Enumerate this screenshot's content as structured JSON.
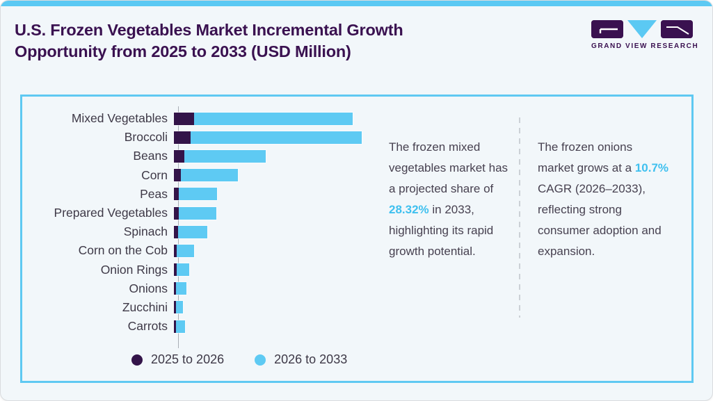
{
  "header": {
    "title_lines": [
      "U.S. Frozen Vegetables Market Incremental Growth",
      "Opportunity from 2025 to 2033 (USD Million)"
    ],
    "brand": "GRAND VIEW RESEARCH"
  },
  "chart_data": {
    "type": "bar",
    "orientation": "horizontal",
    "stacked": true,
    "title": "U.S. Frozen Vegetables Market Incremental Growth Opportunity from 2025 to 2033 (USD Million)",
    "units": "USD Million",
    "value_note": "no numeric axis or data labels shown; values are relative bar lengths measured in screen pixels",
    "grid": false,
    "legend_position": "bottom",
    "categories": [
      "Mixed Vegetables",
      "Broccoli",
      "Beans",
      "Corn",
      "Peas",
      "Prepared Vegetables",
      "Spinach",
      "Corn on the Cob",
      "Onion Rings",
      "Onions",
      "Zucchini",
      "Carrots"
    ],
    "series": [
      {
        "name": "2025 to 2026",
        "color": "#331449",
        "values": [
          29,
          24,
          15,
          10,
          7,
          7,
          6,
          4,
          4,
          3,
          3,
          3
        ]
      },
      {
        "name": "2026 to 2033",
        "color": "#5ecaf3",
        "values": [
          228,
          246,
          117,
          82,
          55,
          54,
          42,
          25,
          18,
          15,
          10,
          13
        ]
      }
    ]
  },
  "annotations": {
    "insight1": {
      "pre": "The frozen mixed vegetables market has a projected share of ",
      "highlight": "28.32%",
      "post": " in 2033, highlighting its rapid growth potential."
    },
    "insight2": {
      "pre": "The frozen onions market grows at a ",
      "highlight": "10.7%",
      "post": " CAGR (2026–2033), reflecting strong consumer adoption and expansion."
    }
  },
  "colors": {
    "accent_blue": "#5bc9f3",
    "bar_blue": "#5ecaf3",
    "bar_dark_purple": "#331449",
    "title_purple": "#3a1150",
    "body_text": "#474150",
    "highlight_blue": "#3fc0ef",
    "panel_border": "#5fc9f2",
    "axis_gray": "#a9aeb5",
    "divider_gray": "#ccd1d6",
    "card_background": "#f2f7fa"
  }
}
